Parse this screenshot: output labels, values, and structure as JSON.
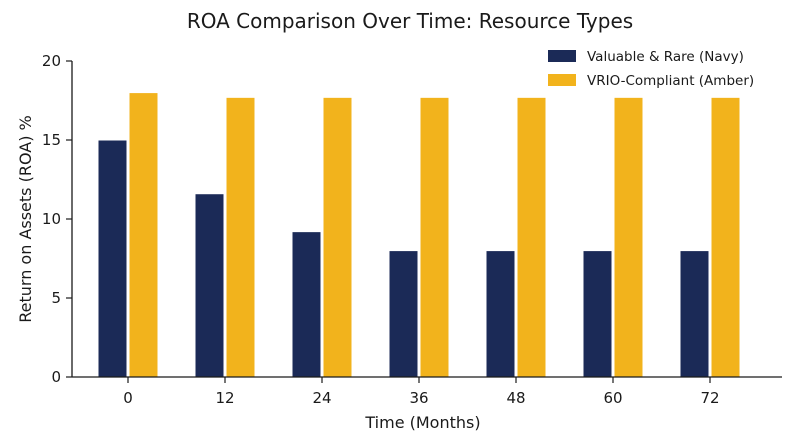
{
  "chart_data": {
    "type": "bar",
    "title": "ROA Comparison Over Time: Resource Types",
    "xlabel": "Time (Months)",
    "ylabel": "Return on Assets (ROA) %",
    "categories": [
      "0",
      "12",
      "24",
      "36",
      "48",
      "60",
      "72"
    ],
    "series": [
      {
        "name": "Valuable & Rare (Navy)",
        "color": "#1b2a57",
        "values": [
          15.0,
          11.6,
          9.2,
          8.0,
          8.0,
          8.0,
          8.0
        ]
      },
      {
        "name": "VRIO-Compliant (Amber)",
        "color": "#f2b31c",
        "values": [
          18.0,
          17.7,
          17.7,
          17.7,
          17.7,
          17.7,
          17.7
        ]
      }
    ],
    "ylim": [
      0,
      20
    ],
    "yticks": [
      0,
      5,
      10,
      15,
      20
    ],
    "grid": false,
    "legend_position": "top-right"
  }
}
